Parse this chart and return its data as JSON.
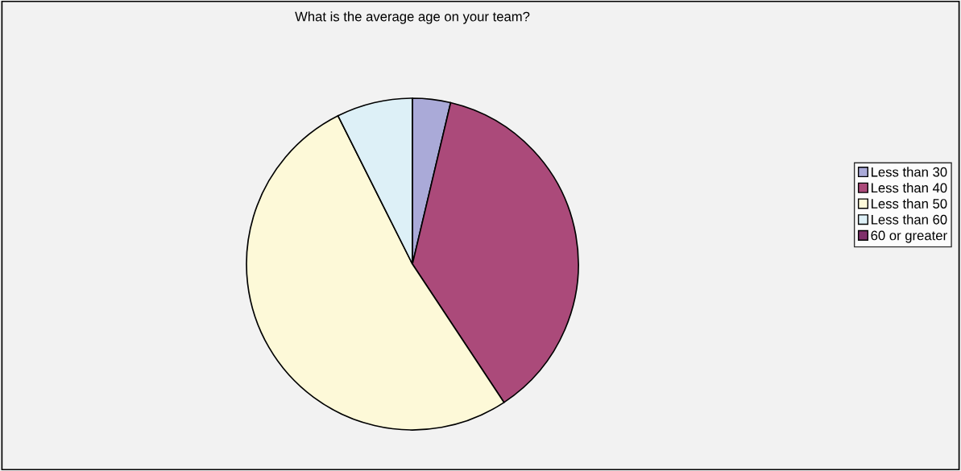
{
  "chart_data": {
    "type": "pie",
    "title": "What is the average age on your team?",
    "categories": [
      "Less than 30",
      "Less than 40",
      "Less than 50",
      "Less than 60",
      "60 or greater"
    ],
    "values": [
      3.7,
      37.0,
      51.9,
      7.4,
      0
    ],
    "colors": [
      "#aaaad8",
      "#ab4a7a",
      "#fdf9d8",
      "#ddf0f7",
      "#7f2f6a"
    ],
    "legend": "right"
  }
}
